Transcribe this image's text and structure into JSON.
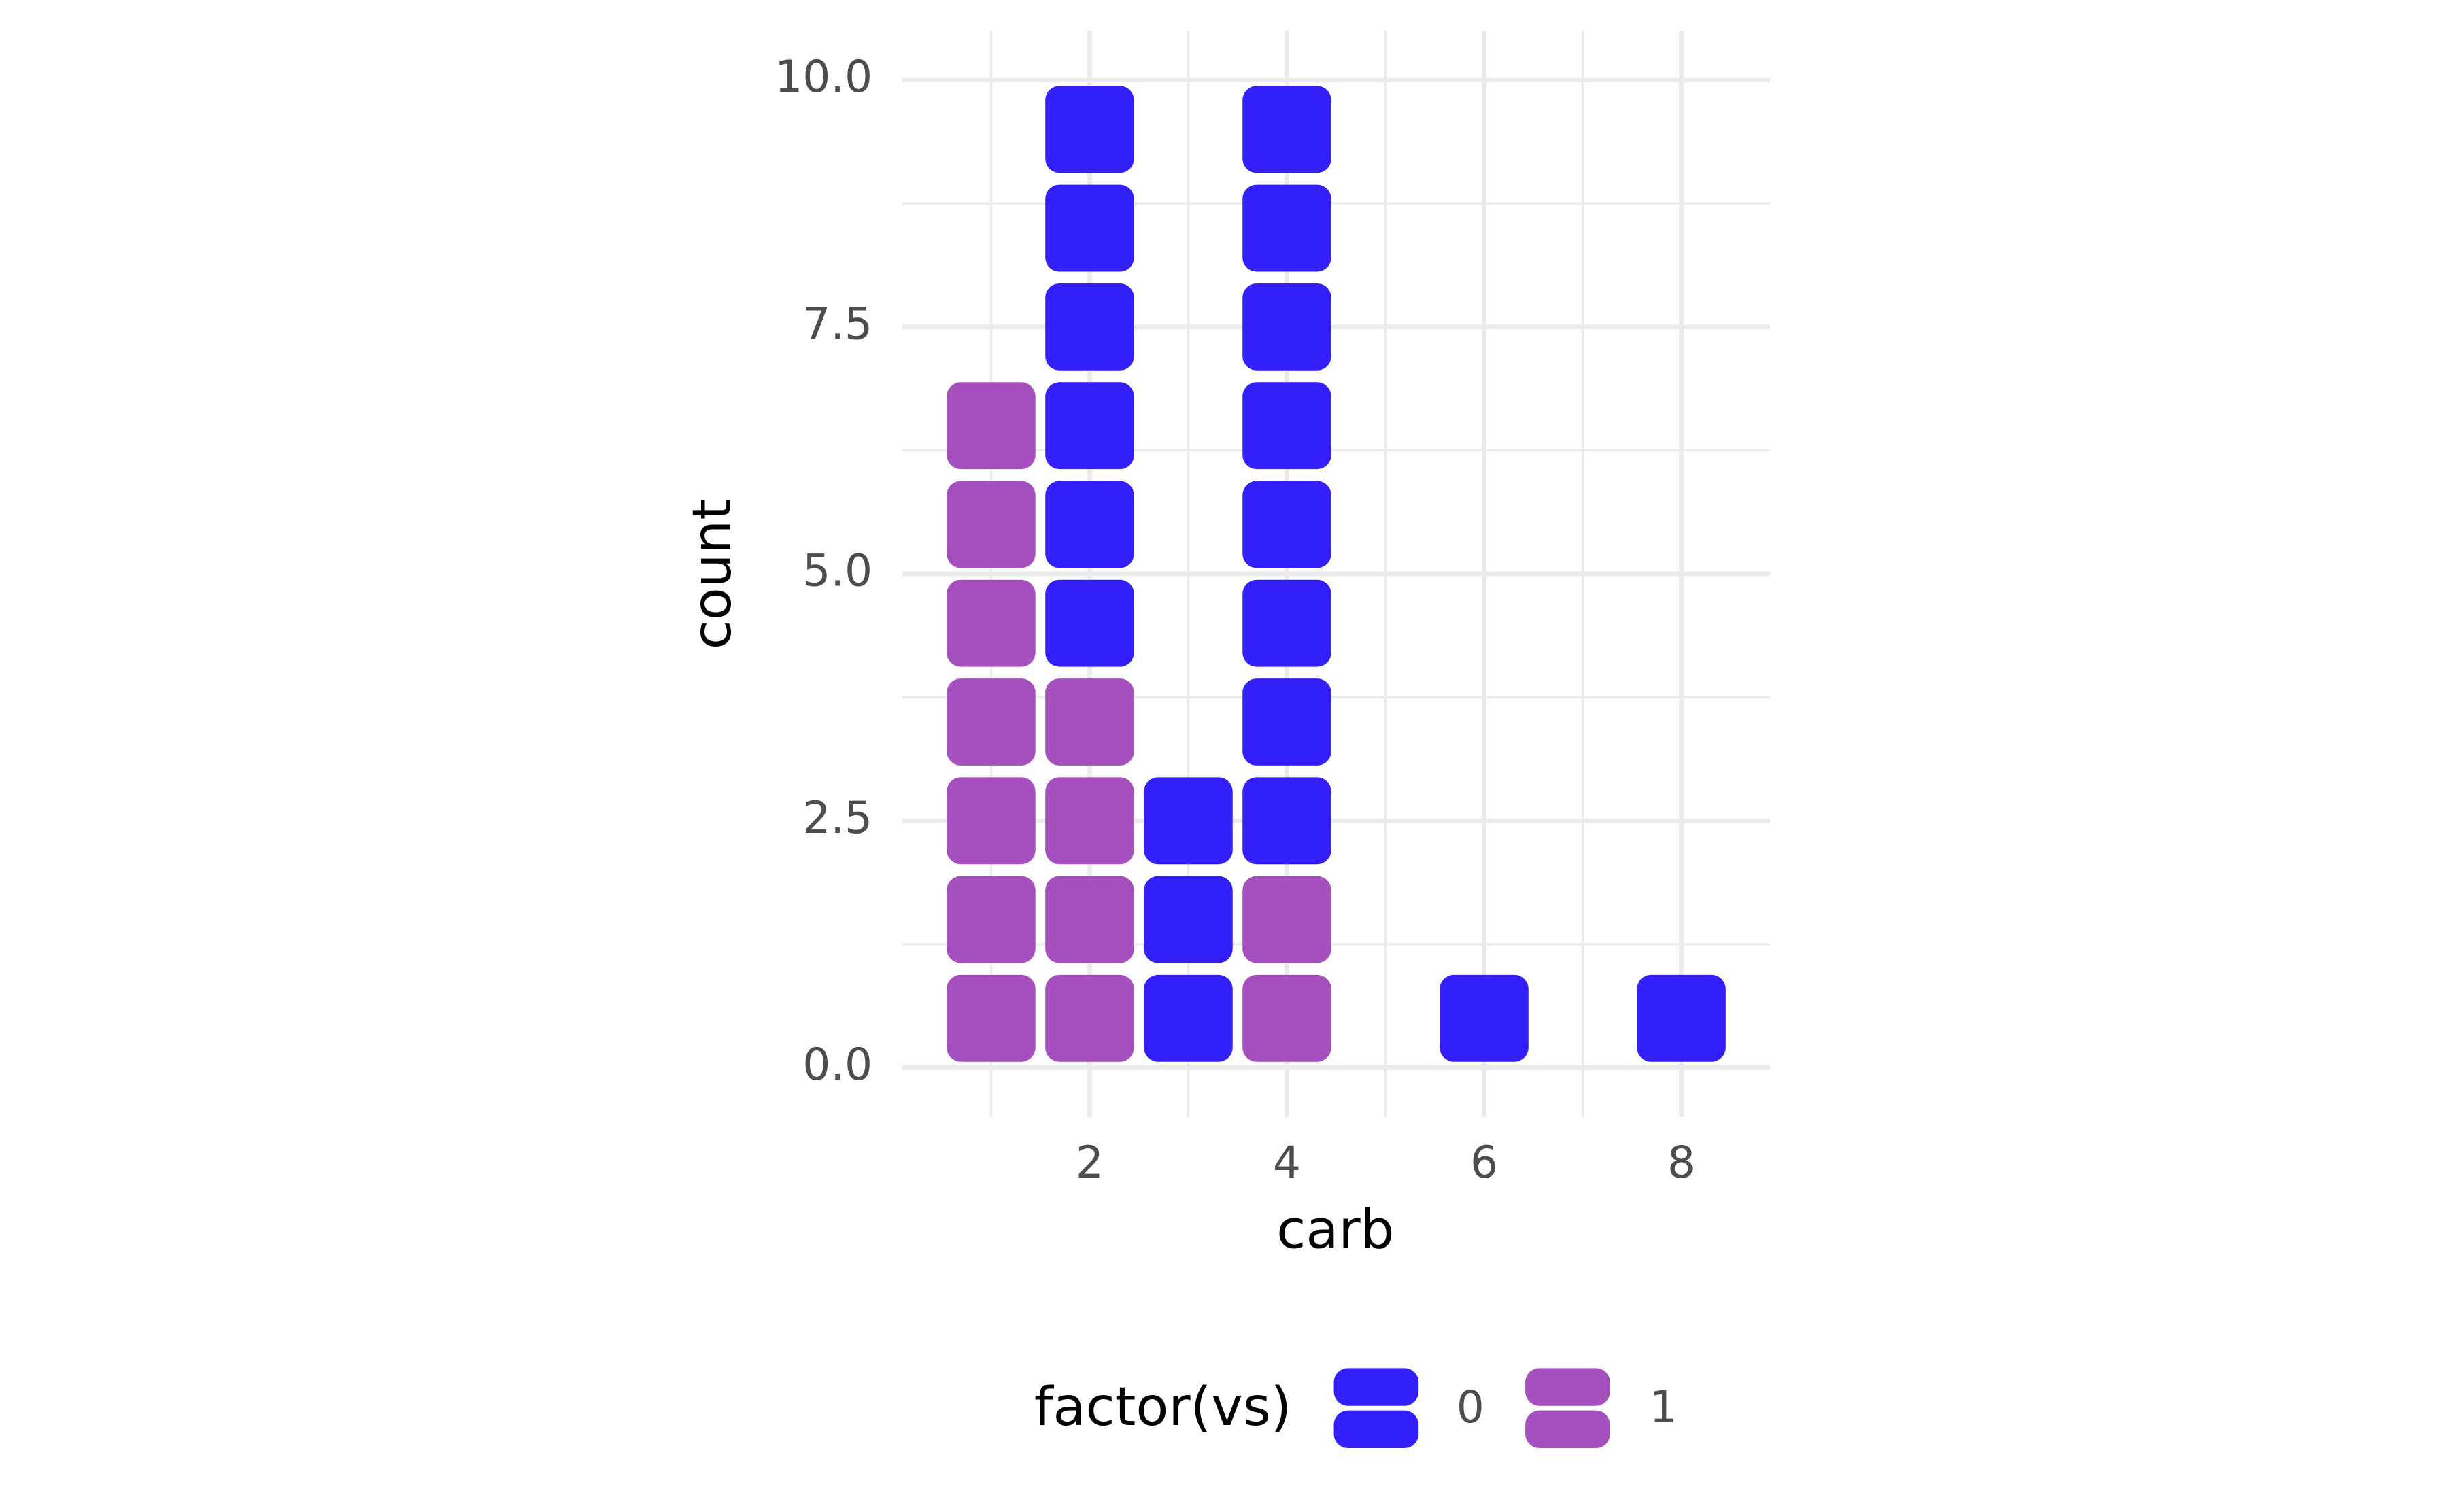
{
  "chart_data": {
    "type": "waffle",
    "x_label": "carb",
    "y_label": "count",
    "x": [
      1,
      2,
      3,
      4,
      6,
      8
    ],
    "series": [
      {
        "name": "0",
        "color": "#3320F8",
        "values": [
          0,
          6,
          3,
          8,
          1,
          1
        ]
      },
      {
        "name": "1",
        "color": "#A64FBF",
        "values": [
          7,
          4,
          0,
          2,
          0,
          0
        ]
      }
    ],
    "legend_title": "factor(vs)",
    "legend_position": "bottom",
    "xlim": [
      0.1,
      8.9
    ],
    "xticks": [
      2,
      4,
      6,
      8
    ],
    "ylim": [
      -0.5,
      10.5
    ],
    "yticks": [
      {
        "value": 0,
        "label": "0.0"
      },
      {
        "value": 2.5,
        "label": "2.5"
      },
      {
        "value": 5,
        "label": "5.0"
      },
      {
        "value": 7.5,
        "label": "7.5"
      },
      {
        "value": 10,
        "label": "10.0"
      }
    ],
    "grid": true
  }
}
